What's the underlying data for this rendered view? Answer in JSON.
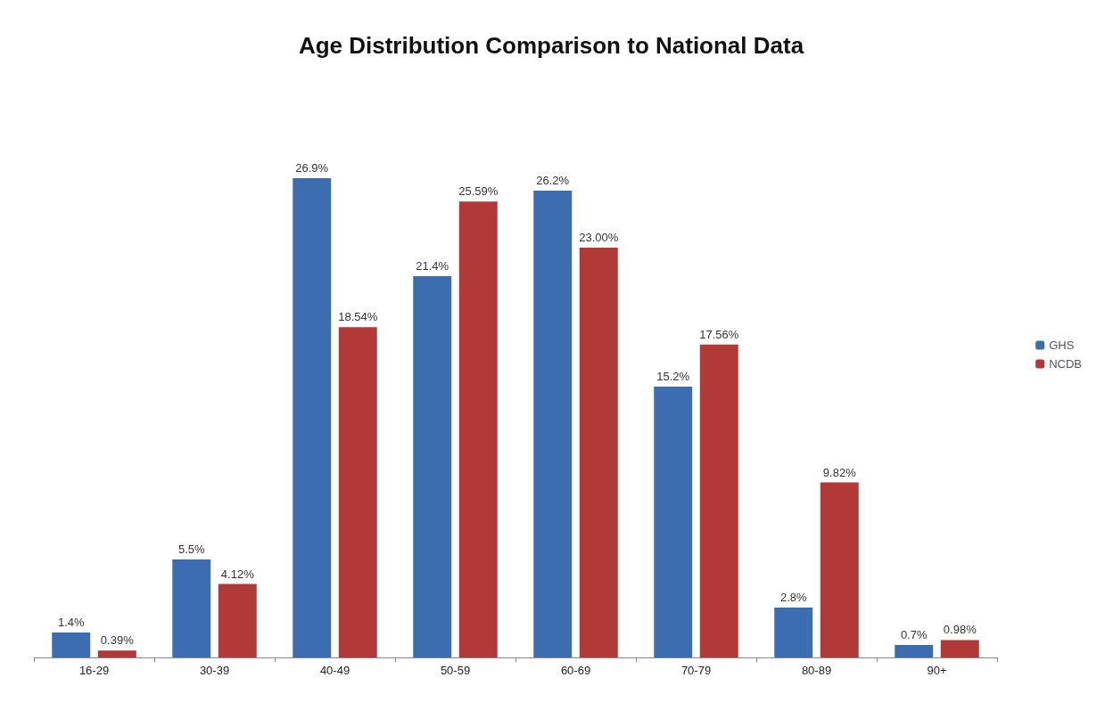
{
  "chart_data": {
    "type": "bar",
    "title": "Age Distribution Comparison to National Data",
    "categories": [
      "16-29",
      "30-39",
      "40-49",
      "50-59",
      "60-69",
      "70-79",
      "80-89",
      "90+"
    ],
    "series": [
      {
        "name": "GHS",
        "color": "#3c6db0",
        "values": [
          1.4,
          5.5,
          26.9,
          21.4,
          26.2,
          15.2,
          2.8,
          0.7
        ],
        "value_labels": [
          "1.4%",
          "5.5%",
          "26.9%",
          "21.4%",
          "26.2%",
          "15.2%",
          "2.8%",
          "0.7%"
        ]
      },
      {
        "name": "NCDB",
        "color": "#b13a38",
        "values": [
          0.39,
          4.12,
          18.54,
          25.59,
          23.0,
          17.56,
          9.82,
          0.98
        ],
        "value_labels": [
          "0.39%",
          "4.12%",
          "18.54%",
          "25.59%",
          "23.00%",
          "17.56%",
          "9.82%",
          "0.98%"
        ]
      }
    ],
    "legend": "right",
    "grid": false
  }
}
